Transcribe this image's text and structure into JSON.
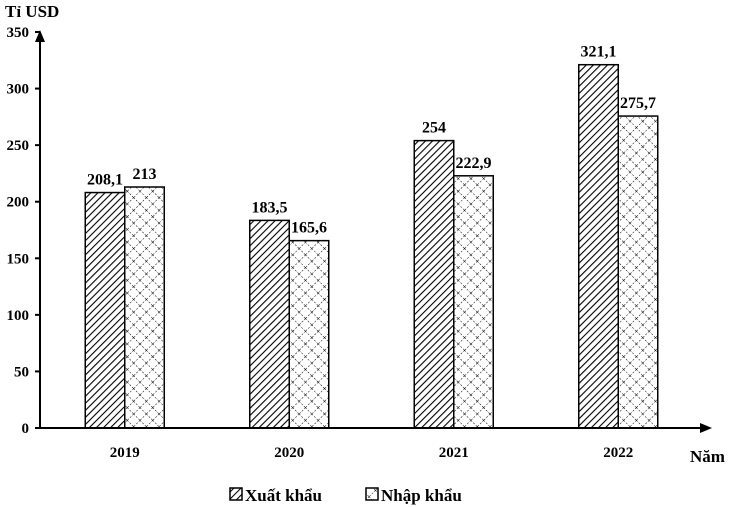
{
  "chart_data": {
    "type": "bar",
    "ylabel": "Tỉ USD",
    "xlabel": "Năm",
    "categories": [
      "2019",
      "2020",
      "2021",
      "2022"
    ],
    "series": [
      {
        "name": "Xuất khẩu",
        "values": [
          208.1,
          183.5,
          254,
          321.1
        ],
        "labels": [
          "208,1",
          "183,5",
          "254",
          "321,1"
        ],
        "pattern": "diagonal-hatch"
      },
      {
        "name": "Nhập khẩu",
        "values": [
          213,
          165.6,
          222.9,
          275.7
        ],
        "labels": [
          "213",
          "165,6",
          "222,9",
          "275,7"
        ],
        "pattern": "crosshatch"
      }
    ],
    "ylim": [
      0,
      350
    ],
    "yticks": [
      "0",
      "50",
      "100",
      "150",
      "200",
      "250",
      "300",
      "350"
    ],
    "grid": false,
    "legend": "bottom"
  }
}
